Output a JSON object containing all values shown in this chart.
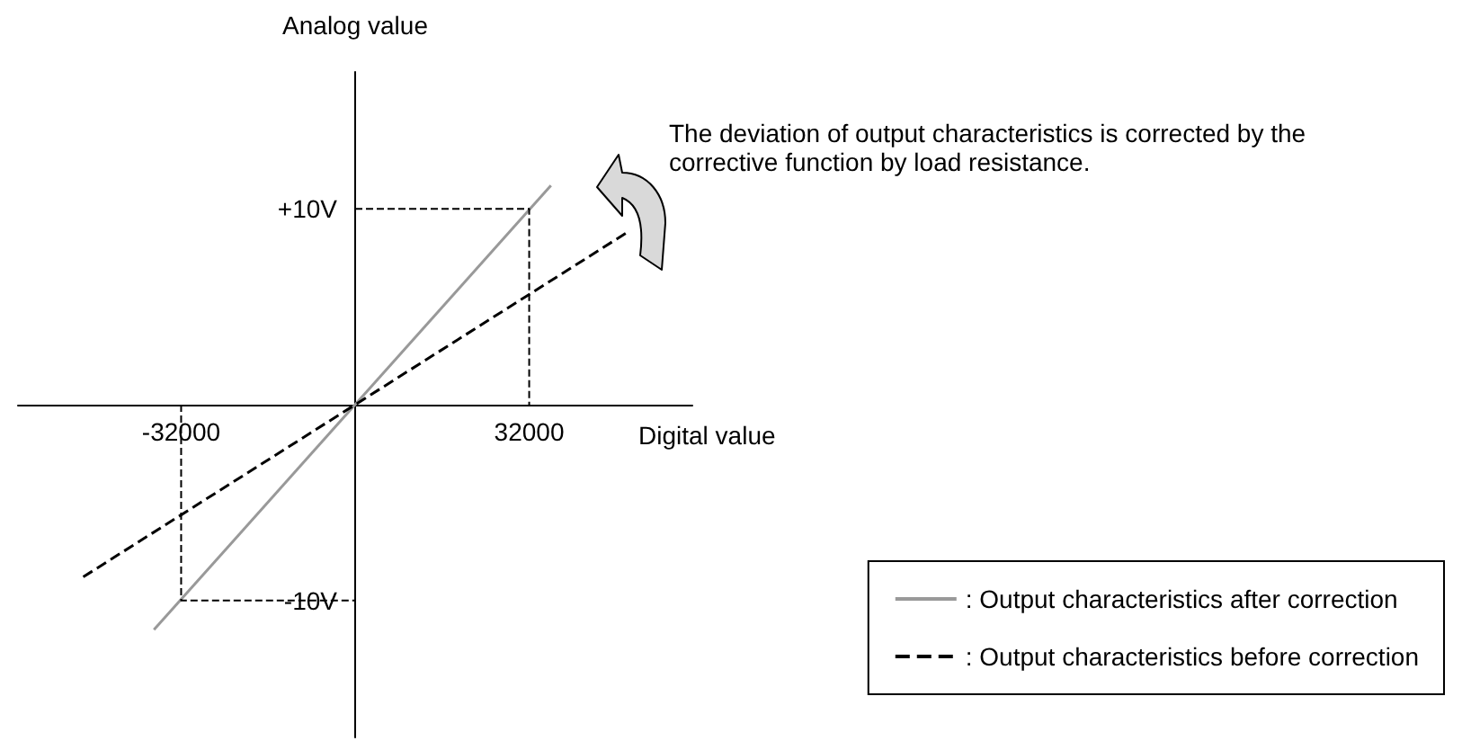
{
  "chart_data": {
    "type": "line",
    "xlabel": "Digital value",
    "ylabel": "Analog value",
    "xlim": [
      -62000,
      62000
    ],
    "ylim": [
      -17,
      17
    ],
    "xticks": [
      -32000,
      32000
    ],
    "yticks": [
      {
        "value": -10,
        "label": "-10V"
      },
      {
        "value": 10,
        "label": "+10V"
      }
    ],
    "grid": false,
    "marker": "none",
    "legend": "bottom right",
    "annotations": [
      "The deviation of output characteristics is corrected by the corrective function by load resistance."
    ],
    "series": [
      {
        "name": ": Output characteristics after correction",
        "color": "#999999",
        "line_style": "solid",
        "x": [
          -37000,
          36000
        ],
        "values": [
          -11.5,
          11.2
        ]
      },
      {
        "name": ": Output characteristics before correction",
        "color": "#000000",
        "line_style": "dashed",
        "x": [
          -50000,
          50000
        ],
        "values": [
          -8.8,
          8.8
        ]
      },
      {
        "color": "#000000",
        "line_style": "dashed",
        "x": [
          0,
          32000,
          32000
        ],
        "values": [
          10,
          10,
          0
        ]
      },
      {
        "color": "#000000",
        "line_style": "dashed",
        "x": [
          -32000,
          -32000,
          0
        ],
        "values": [
          0,
          -10,
          -10
        ]
      }
    ]
  }
}
